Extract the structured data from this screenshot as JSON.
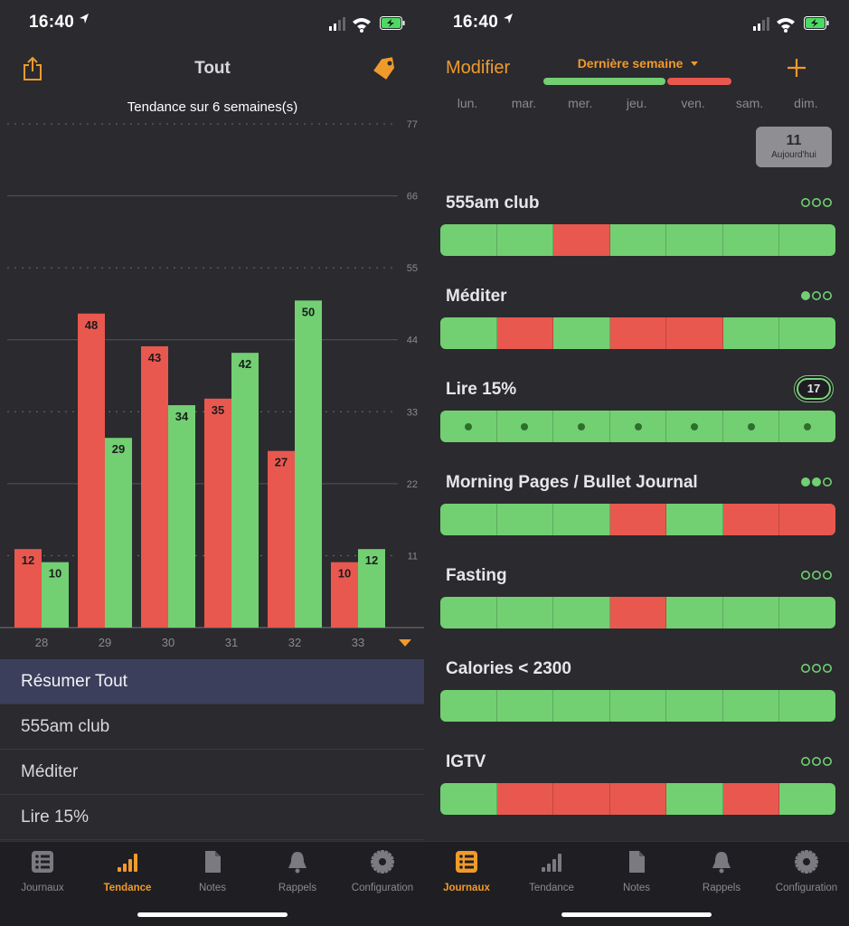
{
  "status_bar": {
    "time": "16:40"
  },
  "left": {
    "nav_title": "Tout",
    "chart_title": "Tendance sur 6 semaines(s)",
    "list": [
      {
        "label": "Résumer Tout",
        "selected": true
      },
      {
        "label": "555am club",
        "selected": false
      },
      {
        "label": "Méditer",
        "selected": false
      },
      {
        "label": "Lire 15%",
        "selected": false
      }
    ],
    "tabs": [
      {
        "label": "Journaux",
        "icon": "list-icon",
        "active": false
      },
      {
        "label": "Tendance",
        "icon": "bar-chart-icon",
        "active": true
      },
      {
        "label": "Notes",
        "icon": "document-icon",
        "active": false
      },
      {
        "label": "Rappels",
        "icon": "bell-icon",
        "active": false
      },
      {
        "label": "Configuration",
        "icon": "gear-icon",
        "active": false
      }
    ]
  },
  "chart_data": {
    "type": "bar",
    "title": "Tendance sur 6 semaines(s)",
    "categories": [
      "28",
      "29",
      "30",
      "31",
      "32",
      "33"
    ],
    "series": [
      {
        "color": "#e8584f",
        "values": [
          12,
          48,
          43,
          35,
          27,
          10
        ]
      },
      {
        "color": "#72d072",
        "values": [
          10,
          29,
          34,
          42,
          50,
          12
        ]
      }
    ],
    "y_ticks": [
      "77",
      "66",
      "55",
      "44",
      "33",
      "22",
      "11"
    ],
    "ylim": [
      0,
      77
    ],
    "grid": true
  },
  "right": {
    "edit_label": "Modifier",
    "week_selector": "Dernière semaine",
    "add_icon": "plus-icon",
    "week_progress_green_fraction": 0.65,
    "days": [
      "lun.",
      "mar.",
      "mer.",
      "jeu.",
      "ven.",
      "sam.",
      "dim."
    ],
    "today": {
      "number": "11",
      "label": "Aujourd'hui"
    },
    "habits": [
      {
        "name": "555am club",
        "cells": [
          "g",
          "g",
          "r",
          "g",
          "g",
          "g",
          "g"
        ],
        "dots_filled": 0
      },
      {
        "name": "Méditer",
        "cells": [
          "g",
          "r",
          "g",
          "r",
          "r",
          "g",
          "g"
        ],
        "dots_filled": 1
      },
      {
        "name": "Lire 15%",
        "cells": [
          "gd",
          "gd",
          "gd",
          "gd",
          "gd",
          "gd",
          "gd"
        ],
        "badge": "17"
      },
      {
        "name": "Morning Pages / Bullet Journal",
        "cells": [
          "g",
          "g",
          "g",
          "r",
          "g",
          "r",
          "r"
        ],
        "dots_filled": 2
      },
      {
        "name": "Fasting",
        "cells": [
          "g",
          "g",
          "g",
          "r",
          "g",
          "g",
          "g"
        ],
        "dots_filled": 0
      },
      {
        "name": "Calories < 2300",
        "cells": [
          "g",
          "g",
          "g",
          "g",
          "g",
          "g",
          "g"
        ],
        "dots_filled": 0
      },
      {
        "name": "IGTV",
        "cells": [
          "g",
          "r",
          "r",
          "r",
          "g",
          "r",
          "g"
        ],
        "dots_filled": 0
      }
    ],
    "tabs": [
      {
        "label": "Journaux",
        "icon": "list-icon",
        "active": true
      },
      {
        "label": "Tendance",
        "icon": "bar-chart-icon",
        "active": false
      },
      {
        "label": "Notes",
        "icon": "document-icon",
        "active": false
      },
      {
        "label": "Rappels",
        "icon": "bell-icon",
        "active": false
      },
      {
        "label": "Configuration",
        "icon": "gear-icon",
        "active": false
      }
    ]
  },
  "colors": {
    "accent": "#f09a2c",
    "green": "#72d072",
    "red": "#e8584f",
    "background": "#2a2a2f"
  }
}
